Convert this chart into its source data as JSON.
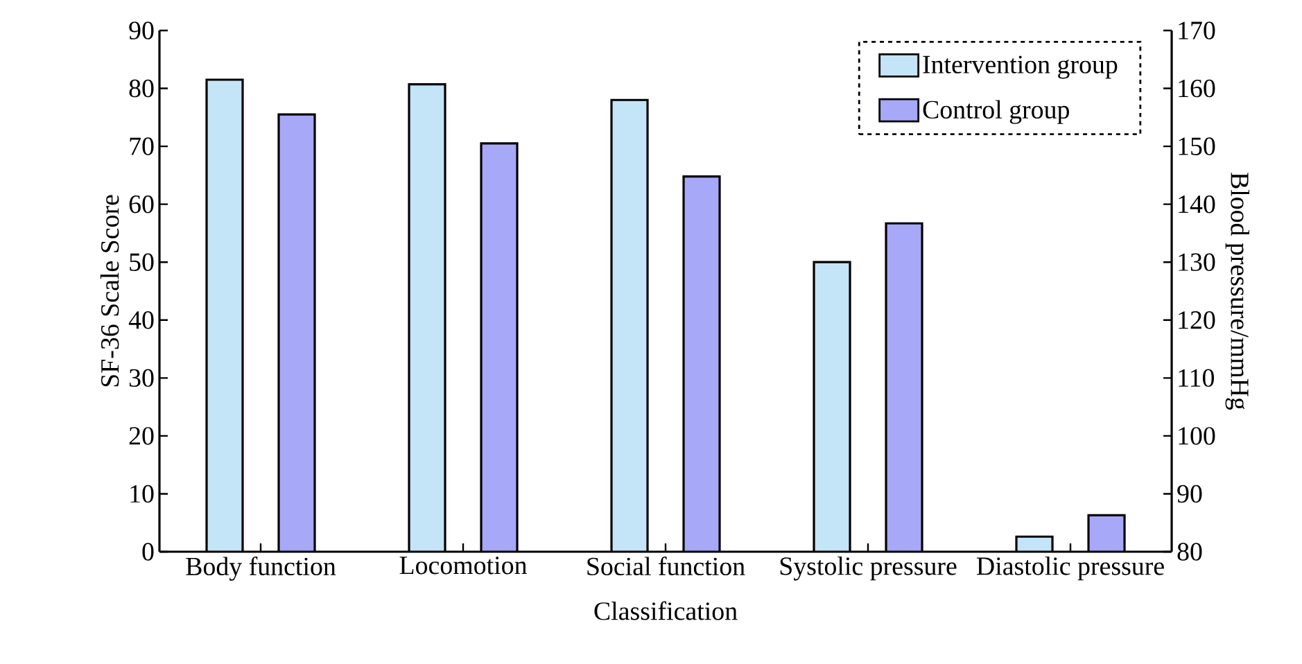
{
  "chart_data": {
    "type": "bar",
    "xlabel": "Classification",
    "ylabel": "SF-36 Scale Score",
    "y2label": "Blood pressure/mmHg",
    "categories": [
      "Body function",
      "Locomotion",
      "Social function",
      "Systolic pressure",
      "Diastolic pressure"
    ],
    "series": [
      {
        "name": "Intervention group",
        "color": "#c4e4f8",
        "values": [
          81.5,
          80.7,
          78,
          null,
          null
        ]
      },
      {
        "name": "Control group",
        "color": "#a8a8f8",
        "values": [
          75.5,
          70.5,
          64.8,
          null,
          null
        ]
      },
      {
        "color": "#c4e4f8",
        "axis": "y2",
        "values": [
          null,
          null,
          null,
          130,
          82.6
        ]
      },
      {
        "color": "#a8a8f8",
        "axis": "y2",
        "values": [
          null,
          null,
          null,
          136.7,
          86.3
        ]
      }
    ],
    "ylim": [
      0,
      90
    ],
    "yticks": [
      0,
      10,
      20,
      30,
      40,
      50,
      60,
      70,
      80,
      90
    ],
    "y2lim": [
      80,
      170
    ],
    "y2ticks": [
      80,
      90,
      100,
      110,
      120,
      130,
      140,
      150,
      160,
      170
    ],
    "legend": "top right",
    "grid": false
  }
}
